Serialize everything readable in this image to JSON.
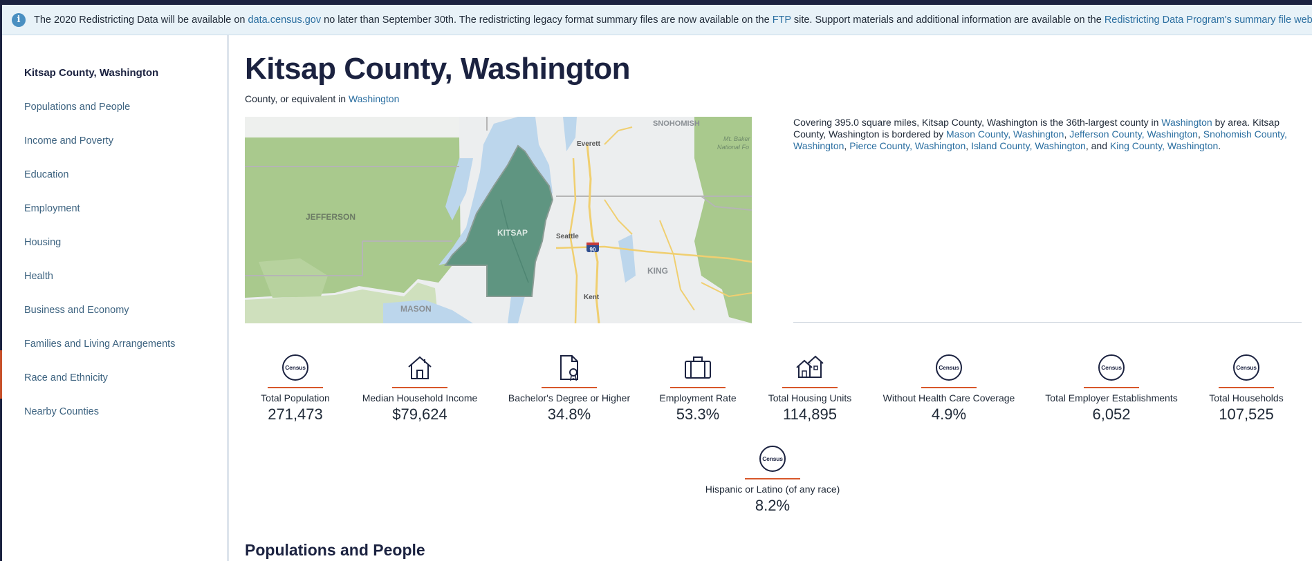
{
  "banner": {
    "icon": "info-icon",
    "text_1": "The 2020 Redistricting Data will be available on ",
    "link_1": "data.census.gov",
    "text_2": " no later than September 30th. The redistricting legacy format summary files are now available on the ",
    "link_2": "FTP",
    "text_3": " site. Support materials and additional information are available on the ",
    "link_3": "Redistricting Data Program's summary file webpage"
  },
  "sidebar": {
    "items": [
      {
        "label": "Kitsap County, Washington",
        "active": true
      },
      {
        "label": "Populations and People"
      },
      {
        "label": "Income and Poverty"
      },
      {
        "label": "Education"
      },
      {
        "label": "Employment"
      },
      {
        "label": "Housing"
      },
      {
        "label": "Health"
      },
      {
        "label": "Business and Economy"
      },
      {
        "label": "Families and Living Arrangements"
      },
      {
        "label": "Race and Ethnicity"
      },
      {
        "label": "Nearby Counties"
      }
    ]
  },
  "header": {
    "title": "Kitsap County, Washington",
    "subtitle_prefix": "County, or equivalent in ",
    "subtitle_link": "Washington"
  },
  "map": {
    "labels": [
      "SNOHOMISH",
      "Mt. Baker",
      "National Fo",
      "Everett",
      "JEFFERSON",
      "KITSAP",
      "Seattle",
      "90",
      "KING",
      "Kent",
      "MASON"
    ],
    "colors": {
      "forest": "#a9c98d",
      "kitsap": "#5f9581",
      "water": "#bcd6ec",
      "land": "#eceeef",
      "road": "#f0cf70"
    }
  },
  "description": {
    "t1": "Covering 395.0 square miles, Kitsap County, Washington is the 36th-largest county in ",
    "l1": "Washington",
    "t2": " by area. Kitsap County, Washington is bordered by ",
    "l2": "Mason County, Washington",
    "s1": ", ",
    "l3": "Jefferson County, Washington",
    "s2": ", ",
    "l4": "Snohomish County, Washington",
    "s3": ", ",
    "l5": "Pierce County, Washington",
    "s4": ", ",
    "l6": "Island County, Washington",
    "s5": ", and ",
    "l7": "King County, Washington",
    "s6": "."
  },
  "stats": [
    {
      "label": "Total Population",
      "value": "271,473",
      "icon": "census-icon",
      "badge": "Census"
    },
    {
      "label": "Median Household Income",
      "value": "$79,624",
      "icon": "house-icon"
    },
    {
      "label": "Bachelor's Degree or Higher",
      "value": "34.8%",
      "icon": "diploma-icon"
    },
    {
      "label": "Employment Rate",
      "value": "53.3%",
      "icon": "briefcase-icon"
    },
    {
      "label": "Total Housing Units",
      "value": "114,895",
      "icon": "houses-icon"
    },
    {
      "label": "Without Health Care Coverage",
      "value": "4.9%",
      "icon": "census-icon",
      "badge": "Census"
    },
    {
      "label": "Total Employer Establishments",
      "value": "6,052",
      "icon": "census-icon",
      "badge": "Census"
    },
    {
      "label": "Total Households",
      "value": "107,525",
      "icon": "census-icon",
      "badge": "Census"
    },
    {
      "label": "Hispanic or Latino (of any race)",
      "value": "8.2%",
      "icon": "census-icon",
      "badge": "Census"
    }
  ],
  "section": {
    "heading": "Populations and People"
  }
}
